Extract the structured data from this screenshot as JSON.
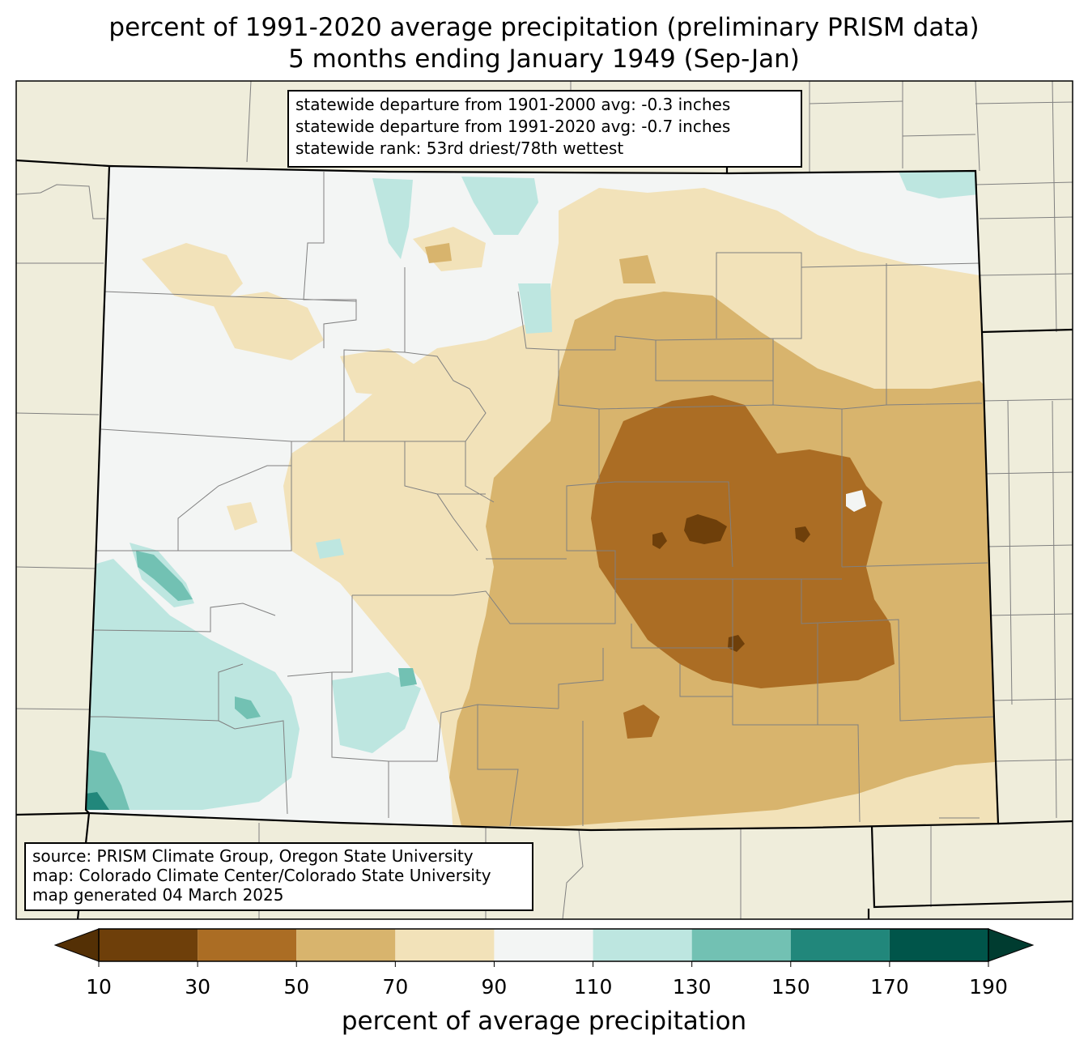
{
  "title_line1": "percent of 1991-2020 average precipitation (preliminary PRISM data)",
  "title_line2": "5 months ending January 1949 (Sep-Jan)",
  "stats": {
    "line1": "statewide departure from 1901-2000 avg: -0.3 inches",
    "line2": "statewide departure from 1991-2020 avg: -0.7 inches",
    "line3": "statewide rank: 53rd driest/78th wettest"
  },
  "credits": {
    "line1": "source: PRISM Climate Group, Oregon State University",
    "line2": "map: Colorado Climate Center/Colorado State University",
    "line3": "map generated 04 March 2025"
  },
  "colorbar": {
    "title": "percent of average precipitation",
    "ticks": [
      "10",
      "30",
      "50",
      "70",
      "90",
      "110",
      "130",
      "150",
      "170",
      "190"
    ],
    "under_color": "#543005",
    "over_color": "#003c30",
    "bins": [
      {
        "range": "10-30",
        "color": "#6e3f0a"
      },
      {
        "range": "30-50",
        "color": "#ab6d24"
      },
      {
        "range": "50-70",
        "color": "#d8b46d"
      },
      {
        "range": "70-90",
        "color": "#f2e2b9"
      },
      {
        "range": "90-110",
        "color": "#f3f5f4"
      },
      {
        "range": "110-130",
        "color": "#bde6e0"
      },
      {
        "range": "130-150",
        "color": "#72c1b3"
      },
      {
        "range": "150-170",
        "color": "#21877b"
      },
      {
        "range": "170-190",
        "color": "#00554a"
      }
    ]
  },
  "colors": {
    "background_land": "#efeddb",
    "county_lines": "#808080",
    "state_lines": "#000000"
  }
}
